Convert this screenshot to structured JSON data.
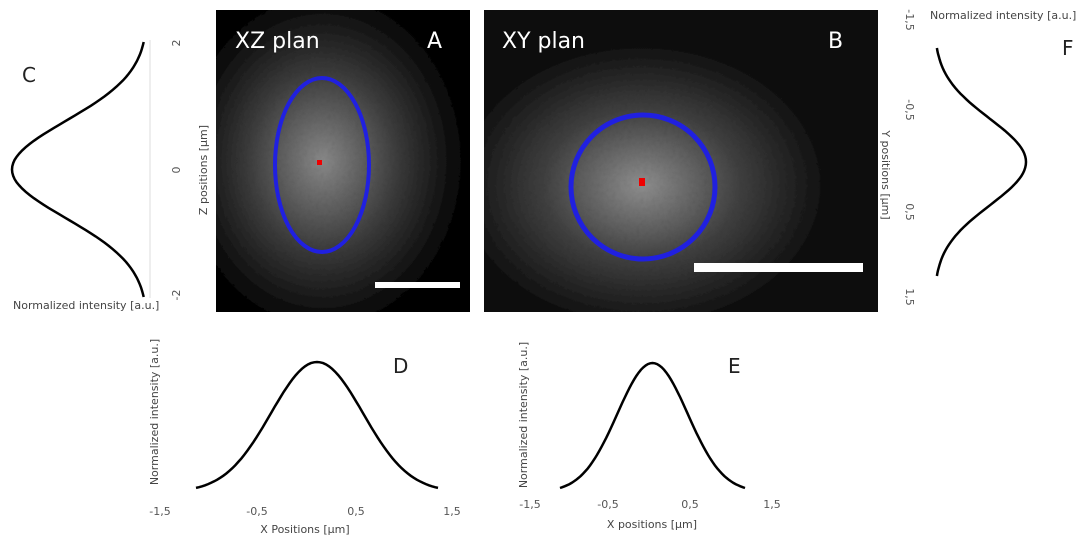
{
  "panel_c": {
    "letter": "C",
    "ticks": [
      "2",
      "0",
      "-2"
    ],
    "axis_label": "Z positions [µm]",
    "intensity_label": "Normalized intensity [a.u.]"
  },
  "panel_a": {
    "title": "XZ plan",
    "letter": "A"
  },
  "panel_b": {
    "title": "XY plan",
    "letter": "B"
  },
  "panel_f": {
    "letter": "F",
    "ticks": [
      "-1,5",
      "-0,5",
      "0,5",
      "1,5"
    ],
    "axis_label": "Y positions [µm]",
    "intensity_label": "Normalized intensity [a.u.]"
  },
  "panel_d": {
    "letter": "D",
    "ticks": [
      "-1,5",
      "-0,5",
      "0,5",
      "1,5"
    ],
    "axis_label": "X Positions [µm]",
    "intensity_label": "Normalized intensity [a.u.]"
  },
  "panel_e": {
    "letter": "E",
    "ticks": [
      "-1,5",
      "-0,5",
      "0,5",
      "1,5"
    ],
    "axis_label": "X positions [µm]",
    "intensity_label": "Normalized intensity [a.u.]"
  }
}
